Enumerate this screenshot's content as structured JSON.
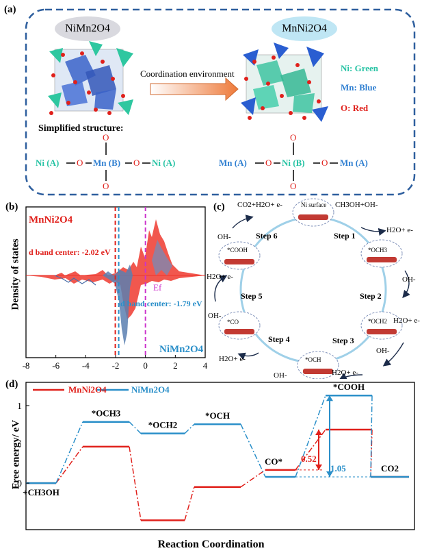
{
  "panel_a": {
    "label": "(a)",
    "left_title": "NiMn2O4",
    "right_title": "MnNi2O4",
    "arrow_label": "Coordination environment",
    "legend": [
      {
        "text": "Ni: Green",
        "color": "#27c3a4"
      },
      {
        "text": "Mn: Blue",
        "color": "#2f7fd1"
      },
      {
        "text": "O: Red",
        "color": "#e0201b"
      }
    ],
    "simplified_title": "Simplified structure:",
    "left_formula": {
      "a": "Ni (A)",
      "o1": "O",
      "b": "Mn (B)",
      "o2": "O",
      "c": "Ni (A)",
      "top": "O",
      "bottom": "O"
    },
    "right_formula": {
      "a": "Mn (A)",
      "o1": "O",
      "b": "Ni (B)",
      "o2": "O",
      "c": "Mn (A)",
      "top": "O",
      "bottom": "O"
    }
  },
  "panel_b": {
    "label": "(b)",
    "top_compound": "MnNi2O4",
    "bottom_compound": "NiMn2O4",
    "red_center": "d band center: -2.02 eV",
    "blue_center": "d band center: -1.79 eV",
    "fermi": "Ef",
    "ylabel": "Density of states",
    "chart_data": {
      "type": "area",
      "xlim": [
        -8,
        4
      ],
      "xticks": [
        "-8",
        "-6",
        "-4",
        "-2",
        "0",
        "2",
        "4"
      ],
      "markers": [
        {
          "x": -2.02,
          "color": "#e0201b"
        },
        {
          "x": -1.79,
          "color": "#2a8fc9"
        },
        {
          "x": 0,
          "color": "#cc33cc"
        }
      ]
    }
  },
  "panel_c": {
    "label": "(c)",
    "intermediates": [
      "Ni surface",
      "*OCH3",
      "*OCH2",
      "*OCH",
      "*CO",
      "*COOH"
    ],
    "steps": [
      "Step 1",
      "Step 2",
      "Step 3",
      "Step 4",
      "Step 5",
      "Step 6"
    ],
    "species": {
      "top_left": "CO2+H2O+ e-",
      "top_right": "CH3OH+OH-",
      "s1_out": "H2O+ e-",
      "s2_in": "OH-",
      "s2_out": "H2O+ e-",
      "s3_in": "OH-",
      "s3_out": "H2O+ e-",
      "s4_in": "OH-",
      "s4_out": "H2O+ e-",
      "s5_in": "OH-",
      "s5_out": "H2O+ e-",
      "s6_in": "OH-"
    }
  },
  "panel_d": {
    "label": "(d)",
    "legend": [
      {
        "name": "MnNi2O4",
        "color": "#e0201b"
      },
      {
        "name": "NiMn2O4",
        "color": "#2a8fc9"
      }
    ],
    "ylabel": "Free energy/ eV",
    "xlabel": "Reaction Coordination",
    "yticks": [
      "0",
      "1"
    ],
    "annot_red": "0.52",
    "annot_blue": "1.05",
    "chart_data": {
      "type": "line",
      "categories": [
        "+CH3OH",
        "*OCH3",
        "*OCH2",
        "*OCH",
        "CO*",
        "*COOH",
        "CO2"
      ],
      "series": [
        {
          "name": "MnNi2O4",
          "values": [
            0,
            0.47,
            -0.48,
            -0.05,
            0.17,
            0.69,
            0.08
          ]
        },
        {
          "name": "NiMn2O4",
          "values": [
            0,
            0.79,
            0.64,
            0.76,
            0.08,
            1.13,
            0.08
          ]
        }
      ],
      "ylim": [
        -0.6,
        1.3
      ]
    }
  }
}
